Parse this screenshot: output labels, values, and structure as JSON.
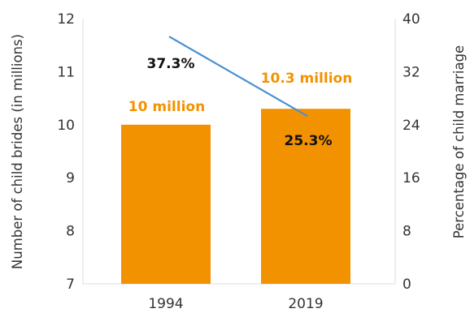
{
  "chart_data": {
    "type": "bar",
    "categories": [
      "1994",
      "2019"
    ],
    "series": [
      {
        "values": [
          10,
          10.3
        ],
        "axis": "left",
        "kind": "bar",
        "labels": [
          "10 million",
          "10.3 million"
        ]
      },
      {
        "values": [
          37.3,
          25.3
        ],
        "axis": "right",
        "kind": "line",
        "labels": [
          "37.3%",
          "25.3%"
        ]
      }
    ],
    "ylabel": "Number of child brides (in millions)",
    "y2label": "Percentage of child marriage",
    "ylim": [
      7,
      12
    ],
    "y2lim": [
      0,
      40
    ],
    "yticks": [
      "7",
      "8",
      "9",
      "10",
      "11",
      "12"
    ],
    "y2ticks": [
      "0",
      "8",
      "16",
      "24",
      "32",
      "40"
    ],
    "grid": false,
    "colors": {
      "bar": "#F39200",
      "line": "#4A90D0",
      "bar_label": "#F39200",
      "text": "#333333"
    }
  }
}
